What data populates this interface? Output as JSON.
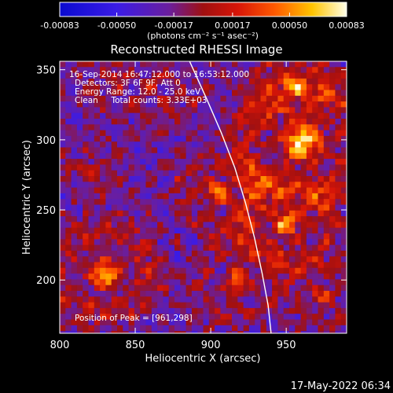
{
  "chart_data": {
    "type": "heatmap",
    "title": "Reconstructed RHESSI Image",
    "xlabel": "Heliocentric X (arcsec)",
    "ylabel": "Heliocentric Y (arcsec)",
    "xlim": [
      800,
      990
    ],
    "ylim": [
      162,
      356
    ],
    "x_ticks": [
      "800",
      "850",
      "900",
      "950"
    ],
    "x_tick_values": [
      800,
      850,
      900,
      950
    ],
    "y_ticks": [
      "200",
      "250",
      "300",
      "350"
    ],
    "y_tick_values": [
      200,
      250,
      300,
      350
    ],
    "colorbar": {
      "label": "(photons cm⁻² s⁻¹ asec⁻²)",
      "min": -0.00083,
      "max": 0.00083,
      "ticks": [
        "-0.00083",
        "-0.00050",
        "-0.00017",
        "0.00017",
        "0.00050",
        "0.00083"
      ],
      "tick_values": [
        -0.00083,
        -0.0005,
        -0.00017,
        0.00017,
        0.0005,
        0.00083
      ]
    },
    "annotations": [
      "16-Sep-2014 16:47:12.000 to 16:53:12.000",
      "Detectors: 3F 6F 9F, Att 0",
      "Energy Range: 12.0 - 25.0 keV",
      "Clean     Total counts: 3.33E+03"
    ],
    "peak_label": "Position of Peak = [961,298]",
    "limb_curve": [
      [
        886,
        356
      ],
      [
        897,
        330
      ],
      [
        907,
        305
      ],
      [
        916,
        280
      ],
      [
        923,
        255
      ],
      [
        929,
        230
      ],
      [
        934,
        205
      ],
      [
        938,
        182
      ],
      [
        940,
        162
      ]
    ]
  },
  "footer": {
    "timestamp": "17-May-2022 06:34"
  }
}
